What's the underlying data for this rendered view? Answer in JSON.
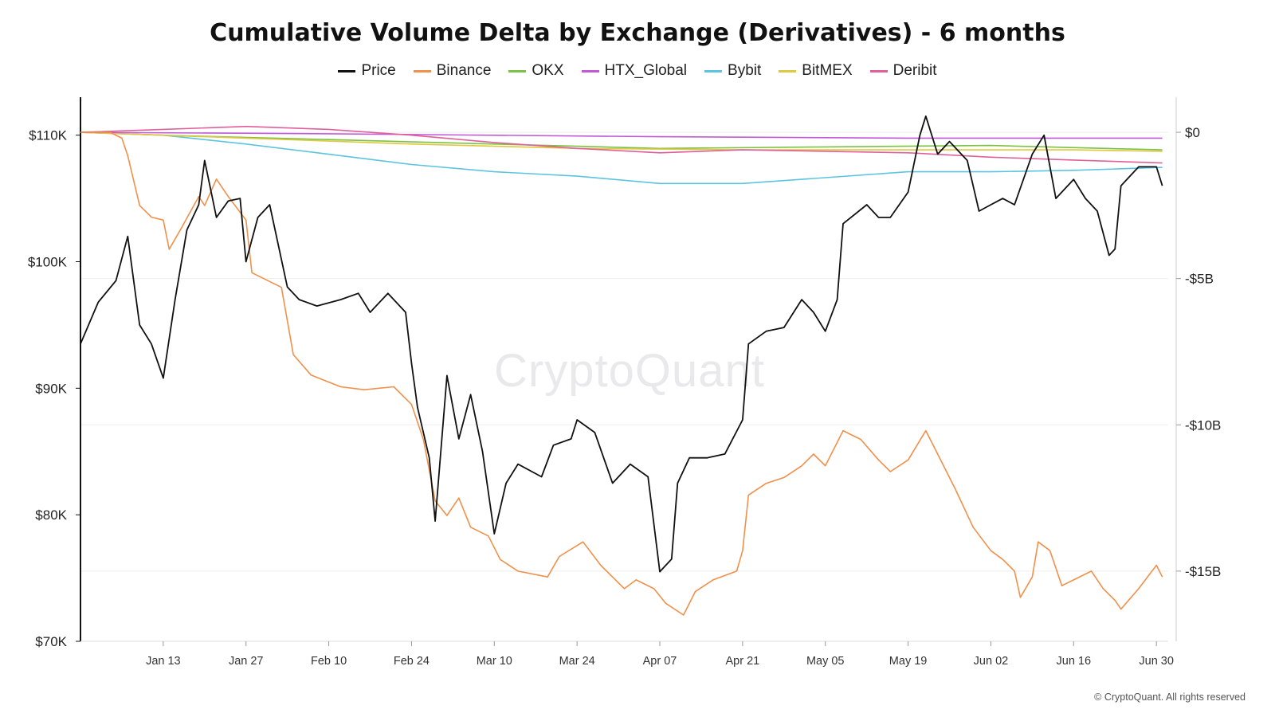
{
  "chart_data": {
    "type": "line",
    "title": "Cumulative Volume Delta by Exchange (Derivatives) - 6 months",
    "x_tick_labels": [
      "Jan 13",
      "Jan 27",
      "Feb 10",
      "Feb 24",
      "Mar 10",
      "Mar 24",
      "Apr 07",
      "Apr 21",
      "May 05",
      "May 19",
      "Jun 02",
      "Jun 16",
      "Jun 30"
    ],
    "x_ticks": [
      "2025-01-13",
      "2025-01-27",
      "2025-02-10",
      "2025-02-24",
      "2025-03-10",
      "2025-03-24",
      "2025-04-07",
      "2025-04-21",
      "2025-05-05",
      "2025-05-19",
      "2025-06-02",
      "2025-06-16",
      "2025-06-30"
    ],
    "x_range": [
      "2024-12-30",
      "2025-07-02"
    ],
    "y_left": {
      "ticks": [
        70000,
        80000,
        90000,
        100000,
        110000
      ],
      "tick_labels": [
        "$70K",
        "$80K",
        "$90K",
        "$100K",
        "$110K"
      ],
      "range": [
        70000,
        113000
      ]
    },
    "y_right": {
      "ticks": [
        0,
        -5,
        -10,
        -15
      ],
      "tick_labels": [
        "$0",
        "-$5B",
        "-$10B",
        "-$15B"
      ],
      "range": [
        -17.4,
        1.2
      ],
      "unit": "B"
    },
    "legend_position": "top",
    "grid": "horizontal",
    "series": [
      {
        "name": "Price",
        "color": "#111111",
        "axis": "left",
        "points": [
          [
            "2024-12-30",
            93500
          ],
          [
            "2025-01-02",
            96800
          ],
          [
            "2025-01-05",
            98500
          ],
          [
            "2025-01-07",
            102000
          ],
          [
            "2025-01-09",
            95000
          ],
          [
            "2025-01-11",
            93500
          ],
          [
            "2025-01-13",
            90800
          ],
          [
            "2025-01-15",
            97000
          ],
          [
            "2025-01-17",
            102500
          ],
          [
            "2025-01-19",
            104500
          ],
          [
            "2025-01-20",
            108000
          ],
          [
            "2025-01-22",
            103500
          ],
          [
            "2025-01-24",
            104800
          ],
          [
            "2025-01-26",
            105000
          ],
          [
            "2025-01-27",
            100000
          ],
          [
            "2025-01-29",
            103500
          ],
          [
            "2025-01-31",
            104500
          ],
          [
            "2025-02-03",
            98000
          ],
          [
            "2025-02-05",
            97000
          ],
          [
            "2025-02-08",
            96500
          ],
          [
            "2025-02-12",
            97000
          ],
          [
            "2025-02-15",
            97500
          ],
          [
            "2025-02-17",
            96000
          ],
          [
            "2025-02-20",
            97500
          ],
          [
            "2025-02-23",
            96000
          ],
          [
            "2025-02-24",
            92000
          ],
          [
            "2025-02-25",
            88500
          ],
          [
            "2025-02-27",
            84500
          ],
          [
            "2025-02-28",
            79500
          ],
          [
            "2025-03-02",
            91000
          ],
          [
            "2025-03-04",
            86000
          ],
          [
            "2025-03-06",
            89500
          ],
          [
            "2025-03-08",
            85000
          ],
          [
            "2025-03-10",
            78500
          ],
          [
            "2025-03-12",
            82500
          ],
          [
            "2025-03-14",
            84000
          ],
          [
            "2025-03-18",
            83000
          ],
          [
            "2025-03-20",
            85500
          ],
          [
            "2025-03-23",
            86000
          ],
          [
            "2025-03-24",
            87500
          ],
          [
            "2025-03-27",
            86500
          ],
          [
            "2025-03-30",
            82500
          ],
          [
            "2025-04-02",
            84000
          ],
          [
            "2025-04-05",
            83000
          ],
          [
            "2025-04-07",
            75500
          ],
          [
            "2025-04-09",
            76500
          ],
          [
            "2025-04-10",
            82500
          ],
          [
            "2025-04-12",
            84500
          ],
          [
            "2025-04-15",
            84500
          ],
          [
            "2025-04-18",
            84800
          ],
          [
            "2025-04-21",
            87500
          ],
          [
            "2025-04-22",
            93500
          ],
          [
            "2025-04-25",
            94500
          ],
          [
            "2025-04-28",
            94800
          ],
          [
            "2025-05-01",
            97000
          ],
          [
            "2025-05-03",
            96000
          ],
          [
            "2025-05-05",
            94500
          ],
          [
            "2025-05-07",
            97000
          ],
          [
            "2025-05-08",
            103000
          ],
          [
            "2025-05-12",
            104500
          ],
          [
            "2025-05-14",
            103500
          ],
          [
            "2025-05-16",
            103500
          ],
          [
            "2025-05-19",
            105500
          ],
          [
            "2025-05-21",
            110000
          ],
          [
            "2025-05-22",
            111500
          ],
          [
            "2025-05-24",
            108500
          ],
          [
            "2025-05-26",
            109500
          ],
          [
            "2025-05-29",
            108000
          ],
          [
            "2025-05-31",
            104000
          ],
          [
            "2025-06-02",
            104500
          ],
          [
            "2025-06-04",
            105000
          ],
          [
            "2025-06-06",
            104500
          ],
          [
            "2025-06-09",
            108500
          ],
          [
            "2025-06-11",
            110000
          ],
          [
            "2025-06-13",
            105000
          ],
          [
            "2025-06-16",
            106500
          ],
          [
            "2025-06-18",
            105000
          ],
          [
            "2025-06-20",
            104000
          ],
          [
            "2025-06-22",
            100500
          ],
          [
            "2025-06-23",
            101000
          ],
          [
            "2025-06-24",
            106000
          ],
          [
            "2025-06-27",
            107500
          ],
          [
            "2025-06-30",
            107500
          ],
          [
            "2025-07-01",
            106000
          ]
        ]
      },
      {
        "name": "Binance",
        "color": "#f0904a",
        "axis": "right",
        "points": [
          [
            "2024-12-30",
            0.0
          ],
          [
            "2025-01-04",
            0.0
          ],
          [
            "2025-01-06",
            -0.2
          ],
          [
            "2025-01-07",
            -0.8
          ],
          [
            "2025-01-09",
            -2.5
          ],
          [
            "2025-01-11",
            -2.9
          ],
          [
            "2025-01-13",
            -3.0
          ],
          [
            "2025-01-14",
            -4.0
          ],
          [
            "2025-01-16",
            -3.3
          ],
          [
            "2025-01-19",
            -2.2
          ],
          [
            "2025-01-20",
            -2.5
          ],
          [
            "2025-01-22",
            -1.6
          ],
          [
            "2025-01-24",
            -2.2
          ],
          [
            "2025-01-27",
            -3.0
          ],
          [
            "2025-01-28",
            -4.8
          ],
          [
            "2025-02-02",
            -5.3
          ],
          [
            "2025-02-04",
            -7.6
          ],
          [
            "2025-02-07",
            -8.3
          ],
          [
            "2025-02-12",
            -8.7
          ],
          [
            "2025-02-16",
            -8.8
          ],
          [
            "2025-02-21",
            -8.7
          ],
          [
            "2025-02-24",
            -9.3
          ],
          [
            "2025-02-26",
            -10.5
          ],
          [
            "2025-02-28",
            -12.6
          ],
          [
            "2025-03-02",
            -13.1
          ],
          [
            "2025-03-04",
            -12.5
          ],
          [
            "2025-03-06",
            -13.5
          ],
          [
            "2025-03-09",
            -13.8
          ],
          [
            "2025-03-11",
            -14.6
          ],
          [
            "2025-03-14",
            -15.0
          ],
          [
            "2025-03-19",
            -15.2
          ],
          [
            "2025-03-21",
            -14.5
          ],
          [
            "2025-03-25",
            -14.0
          ],
          [
            "2025-03-28",
            -14.8
          ],
          [
            "2025-04-01",
            -15.6
          ],
          [
            "2025-04-03",
            -15.3
          ],
          [
            "2025-04-06",
            -15.6
          ],
          [
            "2025-04-08",
            -16.1
          ],
          [
            "2025-04-11",
            -16.5
          ],
          [
            "2025-04-13",
            -15.7
          ],
          [
            "2025-04-16",
            -15.3
          ],
          [
            "2025-04-20",
            -15.0
          ],
          [
            "2025-04-21",
            -14.3
          ],
          [
            "2025-04-22",
            -12.4
          ],
          [
            "2025-04-25",
            -12.0
          ],
          [
            "2025-04-28",
            -11.8
          ],
          [
            "2025-05-01",
            -11.4
          ],
          [
            "2025-05-03",
            -11.0
          ],
          [
            "2025-05-05",
            -11.4
          ],
          [
            "2025-05-08",
            -10.2
          ],
          [
            "2025-05-11",
            -10.5
          ],
          [
            "2025-05-14",
            -11.2
          ],
          [
            "2025-05-16",
            -11.6
          ],
          [
            "2025-05-19",
            -11.2
          ],
          [
            "2025-05-22",
            -10.2
          ],
          [
            "2025-05-24",
            -11.0
          ],
          [
            "2025-05-27",
            -12.2
          ],
          [
            "2025-05-30",
            -13.5
          ],
          [
            "2025-06-02",
            -14.3
          ],
          [
            "2025-06-04",
            -14.6
          ],
          [
            "2025-06-06",
            -15.0
          ],
          [
            "2025-06-07",
            -15.9
          ],
          [
            "2025-06-09",
            -15.2
          ],
          [
            "2025-06-10",
            -14.0
          ],
          [
            "2025-06-12",
            -14.3
          ],
          [
            "2025-06-14",
            -15.5
          ],
          [
            "2025-06-16",
            -15.3
          ],
          [
            "2025-06-19",
            -15.0
          ],
          [
            "2025-06-21",
            -15.6
          ],
          [
            "2025-06-23",
            -16.0
          ],
          [
            "2025-06-24",
            -16.3
          ],
          [
            "2025-06-27",
            -15.6
          ],
          [
            "2025-06-30",
            -14.8
          ],
          [
            "2025-07-01",
            -15.2
          ]
        ]
      },
      {
        "name": "OKX",
        "color": "#7cc245",
        "axis": "right",
        "points": [
          [
            "2024-12-30",
            0.0
          ],
          [
            "2025-01-13",
            -0.1
          ],
          [
            "2025-02-10",
            -0.25
          ],
          [
            "2025-03-10",
            -0.4
          ],
          [
            "2025-04-07",
            -0.55
          ],
          [
            "2025-05-05",
            -0.5
          ],
          [
            "2025-06-02",
            -0.45
          ],
          [
            "2025-07-01",
            -0.6
          ]
        ]
      },
      {
        "name": "HTX_Global",
        "color": "#c25ad8",
        "axis": "right",
        "points": [
          [
            "2024-12-30",
            0.0
          ],
          [
            "2025-02-10",
            -0.05
          ],
          [
            "2025-04-07",
            -0.15
          ],
          [
            "2025-05-19",
            -0.2
          ],
          [
            "2025-07-01",
            -0.2
          ]
        ]
      },
      {
        "name": "Bybit",
        "color": "#5dc4e0",
        "axis": "right",
        "points": [
          [
            "2024-12-30",
            0.0
          ],
          [
            "2025-01-13",
            -0.1
          ],
          [
            "2025-01-27",
            -0.4
          ],
          [
            "2025-02-10",
            -0.75
          ],
          [
            "2025-02-24",
            -1.1
          ],
          [
            "2025-03-10",
            -1.35
          ],
          [
            "2025-03-24",
            -1.5
          ],
          [
            "2025-04-07",
            -1.75
          ],
          [
            "2025-04-21",
            -1.75
          ],
          [
            "2025-05-05",
            -1.55
          ],
          [
            "2025-05-19",
            -1.35
          ],
          [
            "2025-06-02",
            -1.35
          ],
          [
            "2025-06-16",
            -1.3
          ],
          [
            "2025-07-01",
            -1.2
          ]
        ]
      },
      {
        "name": "BitMEX",
        "color": "#e0c840",
        "axis": "right",
        "points": [
          [
            "2024-12-30",
            0.0
          ],
          [
            "2025-01-27",
            -0.2
          ],
          [
            "2025-02-24",
            -0.4
          ],
          [
            "2025-03-24",
            -0.55
          ],
          [
            "2025-04-21",
            -0.6
          ],
          [
            "2025-05-19",
            -0.6
          ],
          [
            "2025-06-16",
            -0.6
          ],
          [
            "2025-07-01",
            -0.65
          ]
        ]
      },
      {
        "name": "Deribit",
        "color": "#e0609a",
        "axis": "right",
        "points": [
          [
            "2024-12-30",
            0.0
          ],
          [
            "2025-01-13",
            0.1
          ],
          [
            "2025-01-27",
            0.2
          ],
          [
            "2025-02-10",
            0.1
          ],
          [
            "2025-02-24",
            -0.1
          ],
          [
            "2025-03-10",
            -0.35
          ],
          [
            "2025-03-24",
            -0.55
          ],
          [
            "2025-04-07",
            -0.7
          ],
          [
            "2025-04-21",
            -0.6
          ],
          [
            "2025-05-05",
            -0.65
          ],
          [
            "2025-05-19",
            -0.7
          ],
          [
            "2025-06-02",
            -0.85
          ],
          [
            "2025-06-16",
            -0.95
          ],
          [
            "2025-07-01",
            -1.05
          ]
        ]
      }
    ]
  },
  "watermark": "CryptoQuant",
  "footer": {
    "copyright": "© CryptoQuant. All rights reserved"
  }
}
